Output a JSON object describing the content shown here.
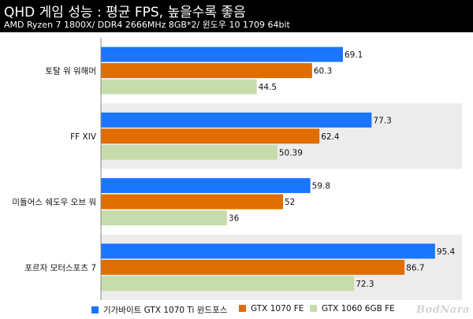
{
  "header": {
    "title": "QHD 게임 성능 : 평균 FPS, 높을수록 좋음",
    "subtitle": "AMD Ryzen 7 1800X/ DDR4 2666MHz 8GB*2/ 윈도우 10 1709 64bit"
  },
  "logo_text": "BodNara",
  "colors": {
    "series1": "#1a75ff",
    "series2": "#e06d00",
    "series3": "#c6dcad",
    "band": "#ececec"
  },
  "chart_data": {
    "type": "bar",
    "orientation": "horizontal",
    "title": "QHD 게임 성능 : 평균 FPS, 높을수록 좋음",
    "subtitle": "AMD Ryzen 7 1800X/ DDR4 2666MHz 8GB*2/ 윈도우 10 1709 64bit",
    "categories": [
      "토탈 워 워해머",
      "FF XIV",
      "미들어스 쉐도우 오브 워",
      "포르자 모터스포츠 7"
    ],
    "series": [
      {
        "name": "기가바이트 GTX 1070 Ti 윈드포스",
        "values": [
          69.1,
          77.3,
          59.8,
          95.4
        ],
        "labels": [
          "69.1",
          "77.3",
          "59.8",
          "95.4"
        ]
      },
      {
        "name": "GTX 1070 FE",
        "values": [
          60.3,
          62.4,
          52,
          86.7
        ],
        "labels": [
          "60.3",
          "62.4",
          "52",
          "86.7"
        ]
      },
      {
        "name": "GTX 1060 6GB FE",
        "values": [
          44.5,
          50.39,
          36,
          72.3
        ],
        "labels": [
          "44.5",
          "50.39",
          "36",
          "72.3"
        ]
      }
    ],
    "xlim": [
      0,
      100
    ],
    "grid": false,
    "legend": "bottom"
  }
}
